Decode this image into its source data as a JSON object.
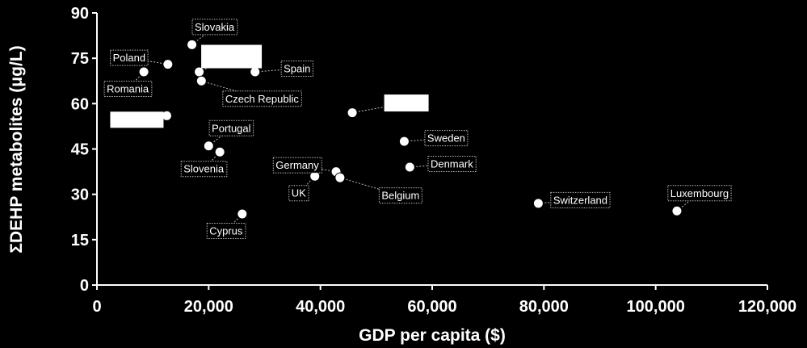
{
  "chart_data": {
    "type": "scatter",
    "title": "",
    "xlabel": "GDP per capita ($)",
    "ylabel": "ΣDEHP metabolites (μg/L)",
    "xlim": [
      0,
      120000
    ],
    "ylim": [
      0,
      90
    ],
    "x_ticks": [
      "0",
      "20,000",
      "40,000",
      "60,000",
      "80,000",
      "100,000",
      "120,000"
    ],
    "y_ticks": [
      "0",
      "15",
      "30",
      "45",
      "60",
      "75",
      "90"
    ],
    "grid": false,
    "legend": "none",
    "colors": {
      "background": "#000000",
      "point": "#ffffff",
      "text": "#ffffff",
      "label_border": "#bbbbbb"
    },
    "points": [
      {
        "label": "Slovakia",
        "x": 17000,
        "y": 79.5,
        "label_pos": "top-right"
      },
      {
        "label": "Poland",
        "x": 12700,
        "y": 73,
        "label_pos": "top-left"
      },
      {
        "label": "Romania",
        "x": 8400,
        "y": 70.5,
        "label_pos": "bottom-left"
      },
      {
        "label": "",
        "x": 18300,
        "y": 70.5,
        "label_pos": "redacted-top"
      },
      {
        "label": "Spain",
        "x": 28300,
        "y": 70.5,
        "label_pos": "right"
      },
      {
        "label": "Czech Republic",
        "x": 18700,
        "y": 67.5,
        "label_pos": "bottom-right"
      },
      {
        "label": "",
        "x": 45700,
        "y": 57,
        "label_pos": "redacted-right"
      },
      {
        "label": "",
        "x": 12500,
        "y": 56,
        "label_pos": "redacted-left"
      },
      {
        "label": "Portugal",
        "x": 20000,
        "y": 46,
        "label_pos": "top-right"
      },
      {
        "label": "Slovenia",
        "x": 22000,
        "y": 44,
        "label_pos": "bottom-left"
      },
      {
        "label": "Sweden",
        "x": 55000,
        "y": 47.5,
        "label_pos": "right"
      },
      {
        "label": "Denmark",
        "x": 56000,
        "y": 39,
        "label_pos": "right"
      },
      {
        "label": "Germany",
        "x": 42800,
        "y": 37.5,
        "label_pos": "top-left"
      },
      {
        "label": "Belgium",
        "x": 43500,
        "y": 35.5,
        "label_pos": "bottom-right"
      },
      {
        "label": "UK",
        "x": 39000,
        "y": 36,
        "label_pos": "bottom-left"
      },
      {
        "label": "Switzerland",
        "x": 79000,
        "y": 27,
        "label_pos": "right"
      },
      {
        "label": "Luxembourg",
        "x": 103800,
        "y": 24.5,
        "label_pos": "top-right"
      },
      {
        "label": "Cyprus",
        "x": 26000,
        "y": 23.5,
        "label_pos": "bottom-left"
      }
    ]
  }
}
